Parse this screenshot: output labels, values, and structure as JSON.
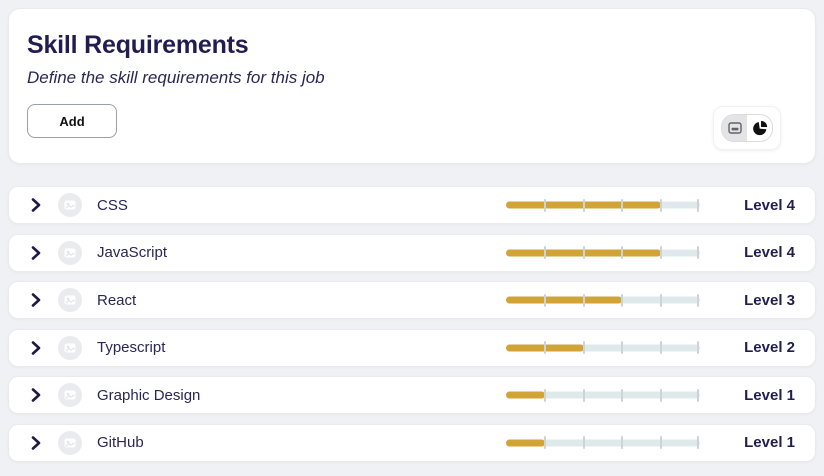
{
  "header": {
    "title": "Skill Requirements",
    "subtitle": "Define the skill requirements for this job",
    "add_button": "Add",
    "view_toggle": {
      "selected": "list",
      "options": [
        {
          "id": "list",
          "icon": "card-list-icon",
          "selected": true
        },
        {
          "id": "chart",
          "icon": "pie-chart-icon",
          "selected": false
        }
      ]
    }
  },
  "skills": [
    {
      "name": "CSS",
      "level": 4,
      "max_level": 5,
      "level_label": "Level 4"
    },
    {
      "name": "JavaScript",
      "level": 4,
      "max_level": 5,
      "level_label": "Level 4"
    },
    {
      "name": "React",
      "level": 3,
      "max_level": 5,
      "level_label": "Level 3"
    },
    {
      "name": "Typescript",
      "level": 2,
      "max_level": 5,
      "level_label": "Level 2"
    },
    {
      "name": "Graphic Design",
      "level": 1,
      "max_level": 5,
      "level_label": "Level 1"
    },
    {
      "name": "GitHub",
      "level": 1,
      "max_level": 5,
      "level_label": "Level 1"
    }
  ],
  "colors": {
    "accent_gold": "#d2a437",
    "navy_text": "#221d50",
    "track": "#dfe9eb",
    "page_background": "#eff1f4"
  }
}
